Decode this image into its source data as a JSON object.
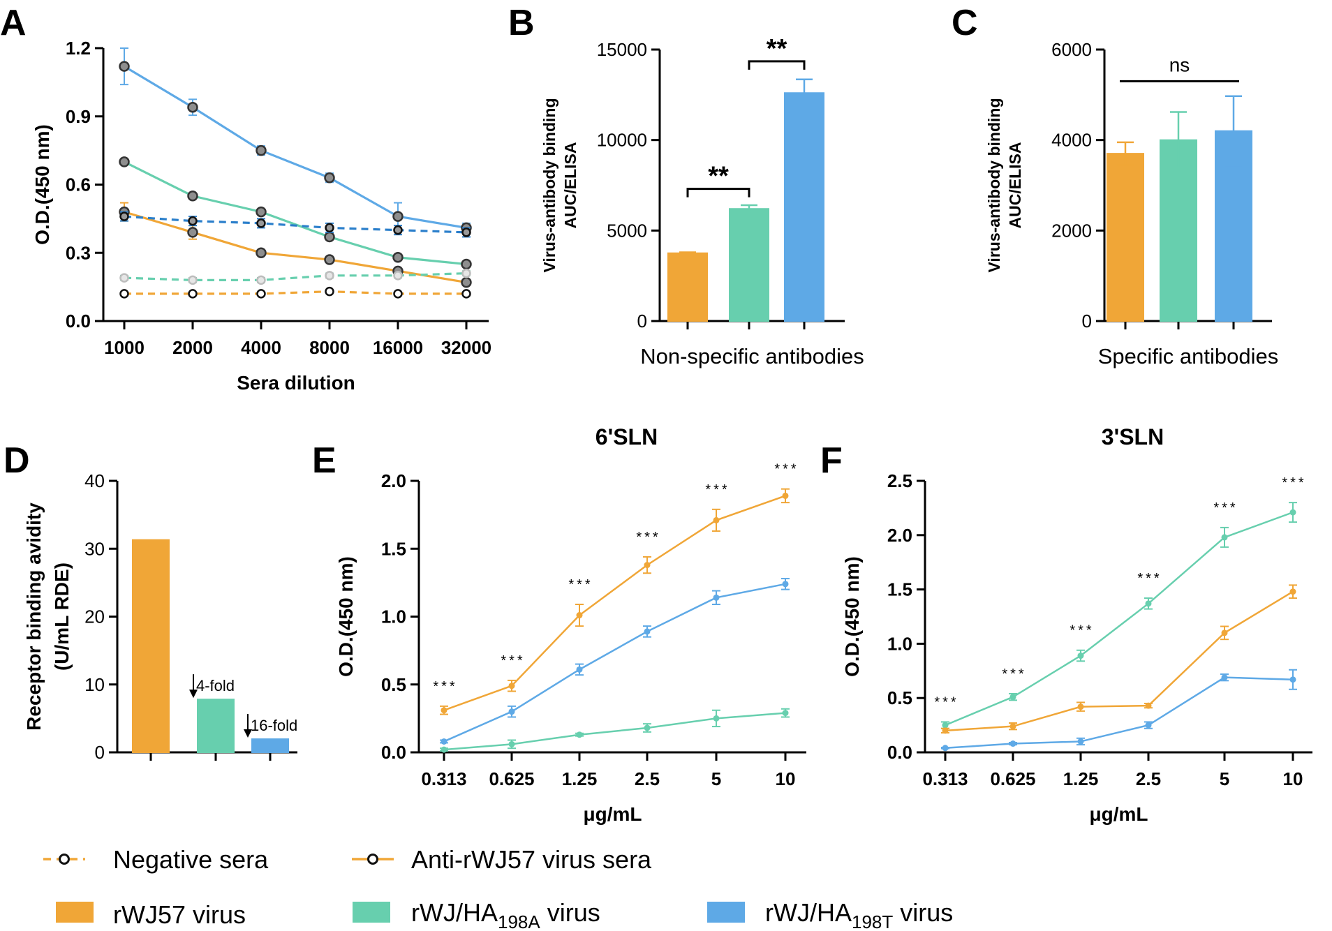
{
  "colors": {
    "orange": "#f0a637",
    "green": "#67cfae",
    "blue": "#5ea9e6",
    "dark_blue": "#2b7fcb",
    "grey": "#9a9a9a"
  },
  "legend": {
    "negative_sera": "Negative sera",
    "anti_sera": "Anti-rWJ57 virus sera",
    "rwj57": "rWJ57 virus",
    "ha198a_prefix": "rWJ/HA",
    "ha198a_sub": "198A",
    "ha198a_suffix": " virus",
    "ha198t_prefix": "rWJ/HA",
    "ha198t_sub": "198T",
    "ha198t_suffix": " virus"
  },
  "chart_data": [
    {
      "panel": "A",
      "type": "line",
      "title": "",
      "xlabel": "Sera dilution",
      "ylabel": "O.D.(450 nm)",
      "categories": [
        "1000",
        "2000",
        "4000",
        "8000",
        "16000",
        "32000"
      ],
      "ylim": [
        0,
        1.2
      ],
      "yticks": [
        "0.0",
        "0.3",
        "0.6",
        "0.9",
        "1.2"
      ],
      "series": [
        {
          "name": "rWJ/HA198T virus - anti-rWJ57 sera",
          "color": "blue",
          "dashed": false,
          "values": [
            1.12,
            0.94,
            0.75,
            0.63,
            0.46,
            0.41
          ],
          "err": [
            0.08,
            0.035,
            0.02,
            0.02,
            0.06,
            0.02
          ]
        },
        {
          "name": "rWJ/HA198A virus - anti-rWJ57 sera",
          "color": "green",
          "dashed": false,
          "values": [
            0.7,
            0.55,
            0.48,
            0.37,
            0.28,
            0.25
          ],
          "err": [
            0.01,
            0.01,
            0.01,
            0.01,
            0.01,
            0.01
          ]
        },
        {
          "name": "rWJ57 virus - anti-rWJ57 sera",
          "color": "orange",
          "dashed": false,
          "values": [
            0.48,
            0.39,
            0.3,
            0.27,
            0.22,
            0.17
          ],
          "err": [
            0.04,
            0.03,
            0.01,
            0.01,
            0.01,
            0.01
          ]
        },
        {
          "name": "rWJ/HA198T virus - negative sera",
          "color": "dark_blue",
          "dashed": true,
          "values": [
            0.46,
            0.44,
            0.43,
            0.41,
            0.4,
            0.39
          ],
          "err": [
            0.02,
            0.02,
            0.02,
            0.02,
            0.02,
            0.02
          ]
        },
        {
          "name": "rWJ/HA198A virus - negative sera",
          "color": "green",
          "dashed": true,
          "values": [
            0.19,
            0.18,
            0.18,
            0.2,
            0.2,
            0.21
          ],
          "err": [
            0.01,
            0.01,
            0.01,
            0.01,
            0.01,
            0.01
          ]
        },
        {
          "name": "rWJ57 virus - negative sera",
          "color": "orange",
          "dashed": true,
          "values": [
            0.12,
            0.12,
            0.12,
            0.13,
            0.12,
            0.12
          ],
          "err": [
            0.005,
            0.005,
            0.005,
            0.005,
            0.005,
            0.005
          ]
        }
      ]
    },
    {
      "panel": "B",
      "type": "bar",
      "title": "",
      "xlabel": "Non-specific antibodies",
      "ylabel_lines": [
        "Virus-antibody binding",
        "AUC/ELISA"
      ],
      "categories": [
        "rWJ57 virus",
        "rWJ/HA198A virus",
        "rWJ/HA198T virus"
      ],
      "colors": [
        "orange",
        "green",
        "blue"
      ],
      "values": [
        3750,
        6200,
        12600
      ],
      "err": [
        50,
        200,
        750
      ],
      "ylim": [
        0,
        15000
      ],
      "yticks": [
        "0",
        "5000",
        "10000",
        "15000"
      ],
      "significance": [
        {
          "label": "**",
          "from": 0,
          "to": 1,
          "level": 7300
        },
        {
          "label": "**",
          "from": 1,
          "to": 2,
          "level": 14350
        }
      ]
    },
    {
      "panel": "C",
      "type": "bar",
      "title": "",
      "xlabel": "Specific antibodies",
      "ylabel_lines": [
        "Virus-antibody binding",
        "AUC/ELISA"
      ],
      "categories": [
        "rWJ57 virus",
        "rWJ/HA198A virus",
        "rWJ/HA198T virus"
      ],
      "colors": [
        "orange",
        "green",
        "blue"
      ],
      "values": [
        3700,
        4000,
        4200
      ],
      "err": [
        250,
        620,
        770
      ],
      "ylim": [
        0,
        6000
      ],
      "yticks": [
        "0",
        "2000",
        "4000",
        "6000"
      ],
      "significance": [
        {
          "label": "ns",
          "from": 0,
          "to": 2,
          "level": 5300
        }
      ]
    },
    {
      "panel": "D",
      "type": "bar",
      "title": "",
      "xlabel": "",
      "ylabel_lines": [
        "Receptor binding avidity",
        "(U/mL RDE)"
      ],
      "categories": [
        "rWJ57 virus",
        "rWJ/HA198A virus",
        "rWJ/HA198T virus"
      ],
      "colors": [
        "orange",
        "green",
        "blue"
      ],
      "values": [
        31.3,
        7.8,
        1.95
      ],
      "ylim": [
        0,
        40
      ],
      "yticks": [
        "0",
        "10",
        "20",
        "30",
        "40"
      ],
      "annotations": [
        "4-fold",
        "16-fold"
      ]
    },
    {
      "panel": "E",
      "type": "line",
      "title": "6'SLN",
      "xlabel": "μg/mL",
      "ylabel": "O.D.(450 nm)",
      "categories": [
        "0.313",
        "0.625",
        "1.25",
        "2.5",
        "5",
        "10"
      ],
      "ylim": [
        0,
        2.0
      ],
      "yticks": [
        "0.0",
        "0.5",
        "1.0",
        "1.5",
        "2.0"
      ],
      "significance_label": "***",
      "series": [
        {
          "name": "rWJ57 virus",
          "color": "orange",
          "values": [
            0.31,
            0.49,
            1.01,
            1.38,
            1.71,
            1.89
          ],
          "err": [
            0.03,
            0.04,
            0.08,
            0.06,
            0.08,
            0.05
          ]
        },
        {
          "name": "rWJ/HA198T virus",
          "color": "blue",
          "values": [
            0.08,
            0.3,
            0.61,
            0.89,
            1.14,
            1.24
          ],
          "err": [
            0.01,
            0.04,
            0.04,
            0.04,
            0.05,
            0.04
          ]
        },
        {
          "name": "rWJ/HA198A virus",
          "color": "green",
          "values": [
            0.02,
            0.06,
            0.13,
            0.18,
            0.25,
            0.29
          ],
          "err": [
            0.01,
            0.03,
            0.01,
            0.03,
            0.06,
            0.03
          ]
        }
      ]
    },
    {
      "panel": "F",
      "type": "line",
      "title": "3'SLN",
      "xlabel": "μg/mL",
      "ylabel": "O.D.(450 nm)",
      "categories": [
        "0.313",
        "0.625",
        "1.25",
        "2.5",
        "5",
        "10"
      ],
      "ylim": [
        0,
        2.5
      ],
      "yticks": [
        "0.0",
        "0.5",
        "1.0",
        "1.5",
        "2.0",
        "2.5"
      ],
      "significance_label": "***",
      "series": [
        {
          "name": "rWJ/HA198A virus",
          "color": "green",
          "values": [
            0.25,
            0.51,
            0.89,
            1.37,
            1.98,
            2.21
          ],
          "err": [
            0.03,
            0.03,
            0.05,
            0.05,
            0.09,
            0.09
          ]
        },
        {
          "name": "rWJ57 virus",
          "color": "orange",
          "values": [
            0.2,
            0.24,
            0.42,
            0.43,
            1.1,
            1.48
          ],
          "err": [
            0.02,
            0.03,
            0.04,
            0.02,
            0.06,
            0.06
          ]
        },
        {
          "name": "rWJ/HA198T virus",
          "color": "blue",
          "values": [
            0.04,
            0.08,
            0.1,
            0.25,
            0.69,
            0.67
          ],
          "err": [
            0.005,
            0.01,
            0.03,
            0.03,
            0.03,
            0.09
          ]
        }
      ]
    }
  ]
}
